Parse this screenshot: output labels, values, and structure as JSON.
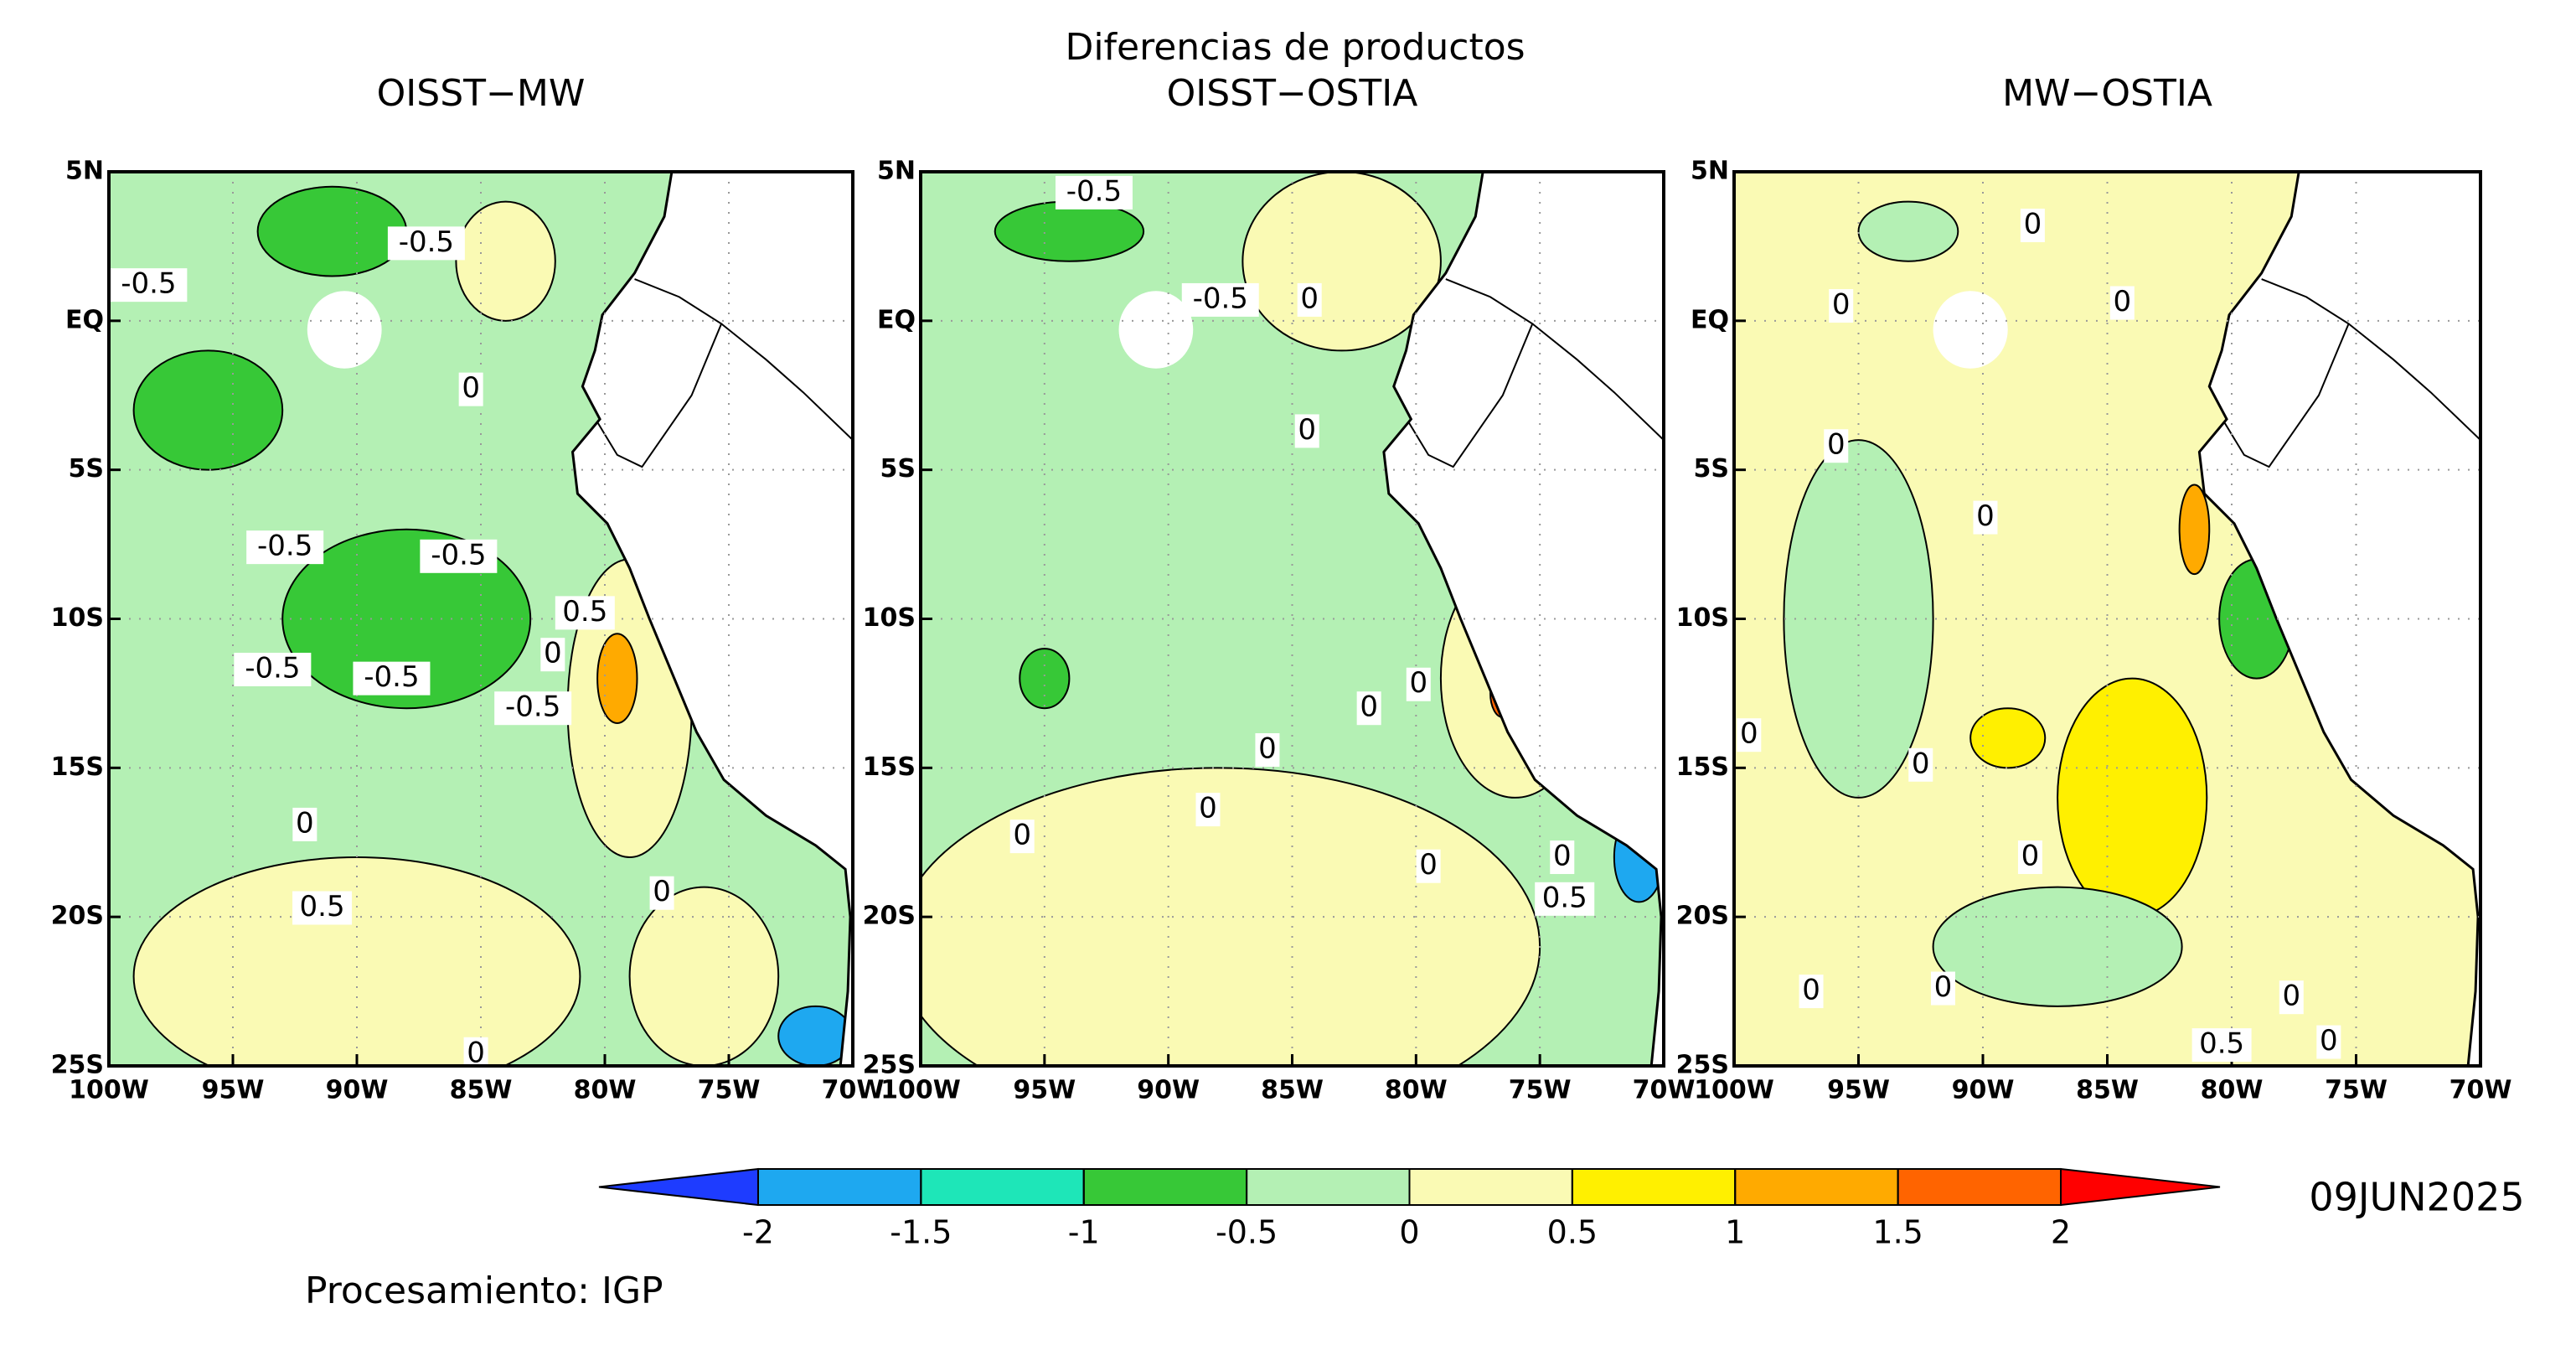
{
  "chart_data": {
    "type": "map",
    "title": "Diferencias de productos",
    "panels": [
      {
        "title": "OISST−MW",
        "contour_labels": [
          -0.5,
          -0.5,
          0,
          -0.5,
          -0.5,
          0.5,
          0,
          -0.5,
          -0.5,
          -0.5,
          0,
          0,
          0.5,
          0
        ]
      },
      {
        "title": "OISST−OSTIA",
        "contour_labels": [
          -0.5,
          -0.5,
          0,
          0,
          0,
          0,
          0,
          0,
          0,
          0,
          0,
          0.5
        ]
      },
      {
        "title": "MW−OSTIA",
        "contour_labels": [
          0,
          0,
          0,
          0,
          0,
          0,
          0,
          0,
          0.5,
          0,
          0,
          0,
          0
        ]
      }
    ],
    "xlim": [
      -100,
      -70
    ],
    "ylim": [
      -25,
      5
    ],
    "xticks": [
      {
        "value": -100,
        "label": "100W"
      },
      {
        "value": -95,
        "label": "95W"
      },
      {
        "value": -90,
        "label": "90W"
      },
      {
        "value": -85,
        "label": "85W"
      },
      {
        "value": -80,
        "label": "80W"
      },
      {
        "value": -75,
        "label": "75W"
      },
      {
        "value": -70,
        "label": "70W"
      }
    ],
    "yticks": [
      {
        "value": 5,
        "label": "5N"
      },
      {
        "value": 0,
        "label": "EQ"
      },
      {
        "value": -5,
        "label": "5S"
      },
      {
        "value": -10,
        "label": "10S"
      },
      {
        "value": -15,
        "label": "15S"
      },
      {
        "value": -20,
        "label": "20S"
      },
      {
        "value": -25,
        "label": "25S"
      }
    ],
    "grid": true,
    "colorbar": {
      "levels": [
        -2,
        -1.5,
        -1,
        -0.5,
        0,
        0.5,
        1,
        1.5,
        2
      ],
      "colors": [
        "#1e3cff",
        "#1ea8f0",
        "#1ee6b8",
        "#37c837",
        "#b4f0b4",
        "#fafab4",
        "#fff000",
        "#ffaa00",
        "#ff6400",
        "#ff0000"
      ]
    },
    "date": "09JUN2025",
    "credit": "Procesamiento: IGP"
  }
}
